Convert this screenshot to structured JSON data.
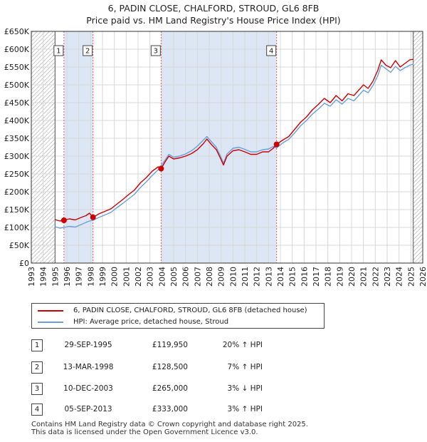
{
  "title": {
    "line1": "6, PADIN CLOSE, CHALFORD, STROUD, GL6 8FB",
    "line2": "Price paid vs. HM Land Registry's House Price Index (HPI)"
  },
  "colors": {
    "price_line": "#cc0000",
    "hpi_line": "#6a9fd8",
    "shade": "#dce6f5",
    "hatch": "#999999",
    "grid": "#d8d8d8",
    "marker_line": "#e06060"
  },
  "chart_data": {
    "type": "line",
    "title": "Price paid vs. HM Land Registry's House Price Index (HPI)",
    "xlim": [
      1993,
      2026
    ],
    "ylim": [
      0,
      650000
    ],
    "x_ticks": [
      1993,
      1994,
      1995,
      1996,
      1997,
      1998,
      1999,
      2000,
      2001,
      2002,
      2003,
      2004,
      2005,
      2006,
      2007,
      2008,
      2009,
      2010,
      2011,
      2012,
      2013,
      2014,
      2015,
      2016,
      2017,
      2018,
      2019,
      2020,
      2021,
      2022,
      2023,
      2024,
      2025,
      2026
    ],
    "y_ticks": [
      {
        "value": 0,
        "label": "£0"
      },
      {
        "value": 50000,
        "label": "£50K"
      },
      {
        "value": 100000,
        "label": "£100K"
      },
      {
        "value": 150000,
        "label": "£150K"
      },
      {
        "value": 200000,
        "label": "£200K"
      },
      {
        "value": 250000,
        "label": "£250K"
      },
      {
        "value": 300000,
        "label": "£300K"
      },
      {
        "value": 350000,
        "label": "£350K"
      },
      {
        "value": 400000,
        "label": "£400K"
      },
      {
        "value": 450000,
        "label": "£450K"
      },
      {
        "value": 500000,
        "label": "£500K"
      },
      {
        "value": 550000,
        "label": "£550K"
      },
      {
        "value": 600000,
        "label": "£600K"
      },
      {
        "value": 650000,
        "label": "£650K"
      }
    ],
    "hatch_regions": [
      [
        1993,
        1995.0
      ],
      [
        2025.2,
        2026
      ]
    ],
    "shaded_regions": [
      [
        1995.75,
        1998.2
      ],
      [
        2003.94,
        2013.68
      ]
    ],
    "series": [
      {
        "name": "6, PADIN CLOSE, CHALFORD, STROUD, GL6 8FB (detached house)",
        "x": [
          1995.0,
          1995.4,
          1995.75,
          1996.2,
          1996.7,
          1997.2,
          1997.6,
          1997.9,
          1998.2,
          1998.7,
          1999.2,
          1999.7,
          2000.2,
          2000.7,
          2001.2,
          2001.7,
          2002.2,
          2002.7,
          2003.2,
          2003.7,
          2003.94,
          2004.3,
          2004.6,
          2005.0,
          2005.5,
          2006.0,
          2006.5,
          2007.0,
          2007.5,
          2007.8,
          2008.2,
          2008.6,
          2009.0,
          2009.2,
          2009.5,
          2010.0,
          2010.5,
          2011.0,
          2011.5,
          2012.0,
          2012.5,
          2013.0,
          2013.4,
          2013.68,
          2014.2,
          2014.7,
          2015.2,
          2015.7,
          2016.2,
          2016.7,
          2017.2,
          2017.7,
          2018.2,
          2018.7,
          2019.2,
          2019.7,
          2020.2,
          2020.6,
          2021.0,
          2021.4,
          2021.8,
          2022.2,
          2022.5,
          2022.9,
          2023.3,
          2023.7,
          2024.1,
          2024.5,
          2024.9,
          2025.2
        ],
        "values": [
          122000,
          118000,
          119950,
          124000,
          121000,
          128000,
          133000,
          140000,
          128500,
          138000,
          145000,
          152000,
          165000,
          178000,
          192000,
          205000,
          225000,
          240000,
          258000,
          270000,
          265000,
          285000,
          300000,
          292000,
          295000,
          300000,
          307000,
          318000,
          335000,
          348000,
          332000,
          318000,
          290000,
          275000,
          300000,
          315000,
          318000,
          312000,
          305000,
          305000,
          312000,
          312000,
          322000,
          333000,
          345000,
          355000,
          375000,
          395000,
          410000,
          430000,
          445000,
          462000,
          450000,
          470000,
          455000,
          475000,
          470000,
          485000,
          500000,
          490000,
          510000,
          540000,
          570000,
          555000,
          548000,
          568000,
          550000,
          560000,
          570000,
          572000
        ]
      },
      {
        "name": "HPI: Average price, detached house, Stroud",
        "x": [
          1995.0,
          1995.4,
          1995.75,
          1996.2,
          1996.7,
          1997.2,
          1997.6,
          1997.9,
          1998.2,
          1998.7,
          1999.2,
          1999.7,
          2000.2,
          2000.7,
          2001.2,
          2001.7,
          2002.2,
          2002.7,
          2003.2,
          2003.7,
          2003.94,
          2004.3,
          2004.6,
          2005.0,
          2005.5,
          2006.0,
          2006.5,
          2007.0,
          2007.5,
          2007.8,
          2008.2,
          2008.6,
          2009.0,
          2009.2,
          2009.5,
          2010.0,
          2010.5,
          2011.0,
          2011.5,
          2012.0,
          2012.5,
          2013.0,
          2013.4,
          2013.68,
          2014.2,
          2014.7,
          2015.2,
          2015.7,
          2016.2,
          2016.7,
          2017.2,
          2017.7,
          2018.2,
          2018.7,
          2019.2,
          2019.7,
          2020.2,
          2020.6,
          2021.0,
          2021.4,
          2021.8,
          2022.2,
          2022.5,
          2022.9,
          2023.3,
          2023.7,
          2024.1,
          2024.5,
          2024.9,
          2025.2
        ],
        "values": [
          102000,
          98000,
          100000,
          103000,
          101000,
          108000,
          114000,
          118000,
          120000,
          128000,
          135000,
          142000,
          155000,
          167000,
          180000,
          193000,
          212000,
          228000,
          246000,
          262000,
          273000,
          290000,
          305000,
          297000,
          300000,
          306000,
          315000,
          328000,
          345000,
          355000,
          340000,
          325000,
          296000,
          280000,
          306000,
          322000,
          325000,
          319000,
          312000,
          312000,
          318000,
          320000,
          327000,
          323000,
          337000,
          347000,
          365000,
          385000,
          400000,
          418000,
          432000,
          448000,
          440000,
          458000,
          446000,
          462000,
          455000,
          470000,
          485000,
          478000,
          498000,
          525000,
          555000,
          545000,
          535000,
          552000,
          540000,
          548000,
          555000,
          558000
        ]
      }
    ],
    "sales": [
      {
        "id": "1",
        "x": 1995.75,
        "value": 119950
      },
      {
        "id": "2",
        "x": 1998.2,
        "value": 128500
      },
      {
        "id": "3",
        "x": 2003.94,
        "value": 265000
      },
      {
        "id": "4",
        "x": 2013.68,
        "value": 333000
      }
    ]
  },
  "legend": {
    "price_label": "6, PADIN CLOSE, CHALFORD, STROUD, GL6 8FB (detached house)",
    "hpi_label": "HPI: Average price, detached house, Stroud"
  },
  "sales_table": [
    {
      "id": "1",
      "date": "29-SEP-1995",
      "price": "£119,950",
      "hpi": "20% ↑ HPI"
    },
    {
      "id": "2",
      "date": "13-MAR-1998",
      "price": "£128,500",
      "hpi": "7% ↑ HPI"
    },
    {
      "id": "3",
      "date": "10-DEC-2003",
      "price": "£265,000",
      "hpi": "3% ↓ HPI"
    },
    {
      "id": "4",
      "date": "05-SEP-2013",
      "price": "£333,000",
      "hpi": "3% ↑ HPI"
    }
  ],
  "footer": {
    "line1": "Contains HM Land Registry data © Crown copyright and database right 2025.",
    "line2": "This data is licensed under the Open Government Licence v3.0."
  }
}
